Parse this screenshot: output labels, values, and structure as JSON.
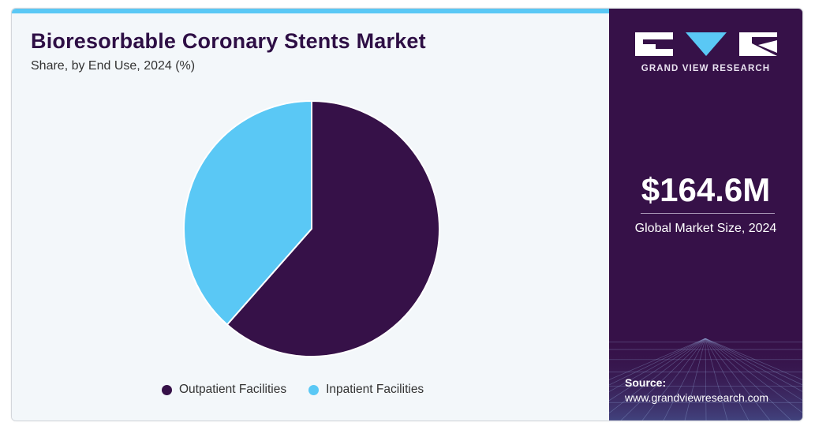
{
  "header": {
    "title": "Bioresorbable Coronary Stents Market",
    "subtitle": "Share, by End Use, 2024 (%)"
  },
  "chart_data": {
    "type": "pie",
    "title": "Bioresorbable Coronary Stents Market",
    "subtitle": "Share, by End Use, 2024 (%)",
    "categories": [
      "Outpatient Facilities",
      "Inpatient Facilities"
    ],
    "values": [
      61.5,
      38.5
    ],
    "colors": [
      "#361148",
      "#5ac8f5"
    ],
    "start_angle_deg": 0,
    "direction": "clockwise",
    "legend": {
      "placement": "bottom",
      "entries": [
        "Outpatient Facilities",
        "Inpatient Facilities"
      ]
    }
  },
  "sidebar": {
    "brand": "GRAND VIEW RESEARCH",
    "market_size_value": "$164.6M",
    "market_size_label": "Global Market Size, 2024",
    "source_label": "Source:",
    "source_url": "www.grandviewresearch.com",
    "background_color": "#361148"
  },
  "colors": {
    "accent": "#5ac8f5",
    "brand": "#361148"
  }
}
